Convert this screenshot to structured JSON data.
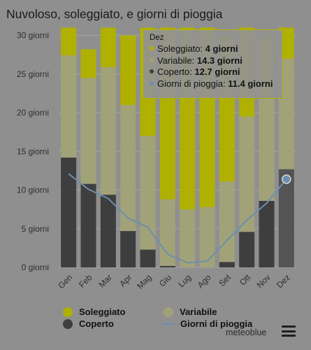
{
  "header": {
    "title": "Nuvoloso, soleggiato, e giorni di pioggia"
  },
  "colors": {
    "soleggiato": "#b0b000",
    "variabile": "#a2a279",
    "coperto": "#3e3e3e",
    "pioggia": "#6b8fae",
    "selected_coperto": "#545454"
  },
  "chart_data": {
    "type": "bar",
    "stacked": true,
    "categories": [
      "Gen",
      "Feb",
      "Mar",
      "Apr",
      "Mag",
      "Giu",
      "Lug",
      "Ago",
      "Set",
      "Ott",
      "Nov",
      "Dez"
    ],
    "y_tick_labels": [
      "0 giorni",
      "5 giorni",
      "10 giorni",
      "15 giorni",
      "20 giorni",
      "25 giorni",
      "30 giorni"
    ],
    "ylim": [
      0,
      31
    ],
    "grid": true,
    "series": [
      {
        "name": "Coperto",
        "values": [
          14.2,
          10.8,
          9.4,
          4.7,
          2.3,
          0.2,
          0,
          0,
          0.7,
          4.6,
          8.6,
          12.7
        ]
      },
      {
        "name": "Variabile",
        "values": [
          13.2,
          13.7,
          16.5,
          16.3,
          14.7,
          8.6,
          7.5,
          7.8,
          10.4,
          14.9,
          13.4,
          14.3
        ]
      },
      {
        "name": "Soleggiato",
        "values": [
          3.6,
          3.7,
          5.1,
          9.0,
          14.0,
          22.2,
          23.5,
          23.2,
          18.9,
          11.5,
          8.0,
          4.0
        ]
      },
      {
        "name": "Giorni di pioggia",
        "type": "line",
        "values": [
          12.1,
          10.1,
          8.9,
          6.4,
          5.2,
          1.7,
          0.6,
          0.8,
          3.5,
          6.1,
          8.3,
          11.4
        ]
      }
    ],
    "highlight_index": 11
  },
  "tooltip": {
    "month": "Dez",
    "rows": [
      {
        "label": "Soleggiato: ",
        "value": "4 giorni"
      },
      {
        "label": "Variabile: ",
        "value": "14.3 giorni"
      },
      {
        "label": "Coperto: ",
        "value": "12.7 giorni"
      },
      {
        "label": "Giorni di pioggia: ",
        "value": "11.4 giorni"
      }
    ]
  },
  "legend": {
    "soleggiato": "Soleggiato",
    "variabile": "Variabile",
    "coperto": "Coperto",
    "pioggia": "Giorni di pioggia"
  },
  "footer": {
    "credit": "meteoblue",
    "menu_icon": "hamburger-menu-icon"
  }
}
